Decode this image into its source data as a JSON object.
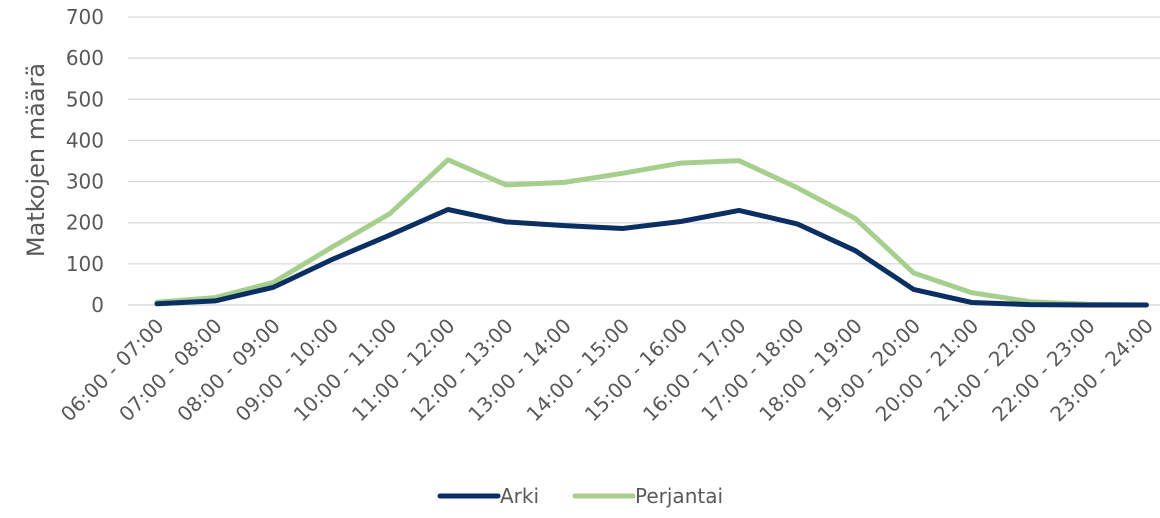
{
  "chart_data": {
    "type": "line",
    "title": "",
    "xlabel": "",
    "ylabel": "Matkojen määrä",
    "ylim": [
      0,
      700
    ],
    "yticks": [
      "0",
      "100",
      "200",
      "300",
      "400",
      "500",
      "600",
      "700"
    ],
    "grid": true,
    "legend_position": "bottom",
    "categories": [
      "06:00 - 07:00",
      "07:00 - 08:00",
      "08:00 - 09:00",
      "09:00 - 10:00",
      "10:00 - 11:00",
      "11:00 - 12:00",
      "12:00 - 13:00",
      "13:00 - 14:00",
      "14:00 - 15:00",
      "15:00 - 16:00",
      "16:00 - 17:00",
      "17:00 - 18:00",
      "18:00 - 19:00",
      "19:00 - 20:00",
      "20:00 - 21:00",
      "21:00 - 22:00",
      "22:00 - 23:00",
      "23:00 - 24:00"
    ],
    "series": [
      {
        "name": "Arki",
        "color": "#0b2e63",
        "values": [
          3,
          10,
          43,
          110,
          170,
          232,
          202,
          193,
          186,
          203,
          230,
          197,
          132,
          38,
          6,
          1,
          0,
          0
        ]
      },
      {
        "name": "Perjantai",
        "color": "#a6cf8e",
        "values": [
          7,
          18,
          55,
          140,
          222,
          353,
          292,
          298,
          320,
          345,
          351,
          285,
          210,
          78,
          30,
          8,
          2,
          0
        ]
      }
    ]
  }
}
